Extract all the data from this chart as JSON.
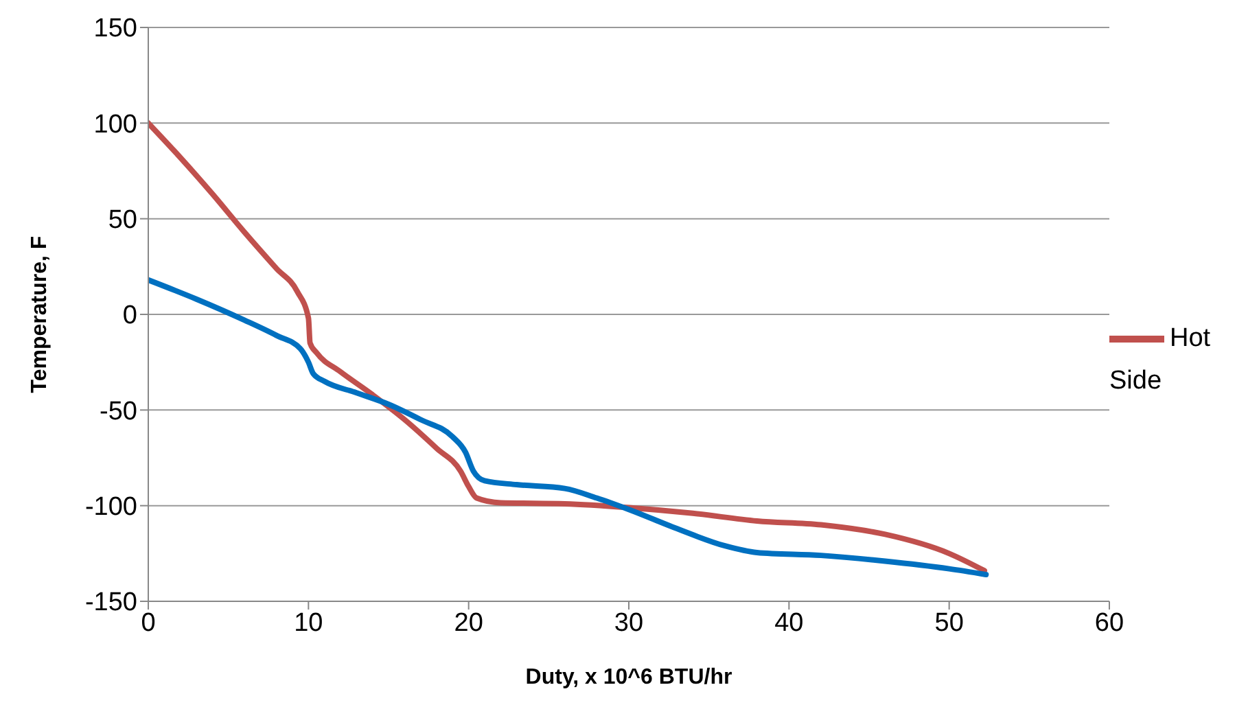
{
  "chart_data": {
    "type": "line",
    "xlabel": "Duty, x 10^6 BTU/hr",
    "ylabel": "Temperature, F",
    "xlim": [
      0,
      60
    ],
    "xticks": [
      0,
      10,
      20,
      30,
      40,
      50,
      60
    ],
    "ylim": [
      -150,
      150
    ],
    "yticks": [
      -150,
      -100,
      -50,
      0,
      50,
      100,
      150
    ],
    "grid": "y",
    "legend": "right",
    "marker": "none",
    "line_style": "solid",
    "series": [
      {
        "name": "Hot Side",
        "color": "#c0504d",
        "x": [
          0,
          2,
          4,
          6,
          8,
          9.3,
          10,
          10.1,
          10.5,
          12,
          14,
          16,
          18,
          19.5,
          20,
          20.5,
          22,
          26,
          30,
          34,
          38,
          42,
          46,
          50,
          52.2
        ],
        "values": [
          100,
          82,
          63,
          43,
          24,
          12,
          -2,
          -15,
          -20,
          -30,
          -42,
          -55,
          -70,
          -82,
          -90,
          -96,
          -98.5,
          -99,
          -101,
          -104,
          -108,
          -110,
          -115,
          -125,
          -134
        ]
      },
      {
        "color": "#0070c0",
        "x": [
          0,
          3,
          6,
          8,
          9.5,
          10,
          10.3,
          11,
          13,
          15,
          17,
          19,
          19.8,
          20.3,
          21,
          23,
          26,
          28,
          30,
          33,
          36,
          38,
          42,
          46,
          50,
          52.3
        ],
        "values": [
          18,
          8,
          -3,
          -11,
          -18,
          -25,
          -31,
          -35,
          -41,
          -47,
          -55,
          -64,
          -72,
          -82,
          -87,
          -89,
          -91,
          -96,
          -102,
          -112,
          -121,
          -124.5,
          -126,
          -129,
          -133,
          -136
        ]
      }
    ]
  }
}
